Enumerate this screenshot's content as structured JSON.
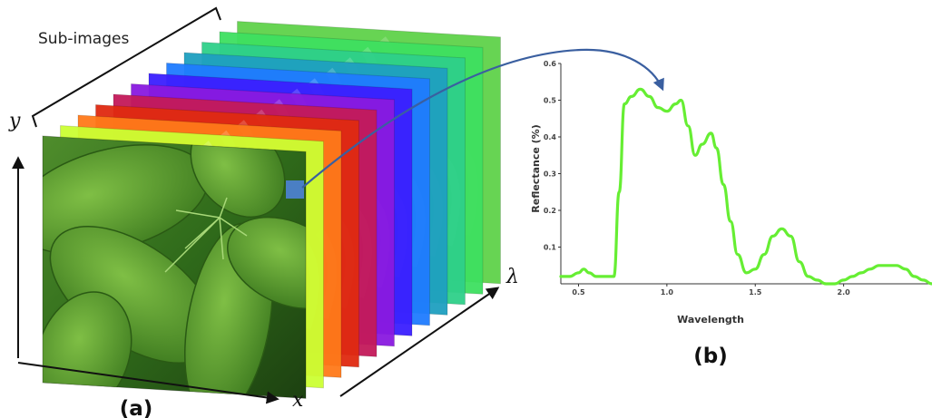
{
  "cube": {
    "sub_images_label": "Sub-images",
    "axis_x": "x",
    "axis_y": "y",
    "axis_lambda": "λ",
    "panel_label": "(a)",
    "layer_colors": [
      "#ccff33",
      "#ff7a1a",
      "#e02a10",
      "#c41a5a",
      "#8a1ae0",
      "#3b1fff",
      "#1f7cff",
      "#1fa0c0",
      "#2fd08a",
      "#3ee060",
      "#5fd24a"
    ],
    "front_image": "leaf-photo"
  },
  "spectrum": {
    "panel_label": "(b)",
    "chart_data": {
      "type": "line",
      "title": "",
      "xlabel": "Wavelength",
      "ylabel": "Reflectance (%)",
      "xlim": [
        0.4,
        2.5
      ],
      "ylim": [
        0,
        0.6
      ],
      "xticks": [
        "0.5",
        "1.0",
        "1.5",
        "2.0"
      ],
      "yticks": [
        "0.1",
        "0.2",
        "0.3",
        "0.4",
        "0.5",
        "0.6"
      ],
      "series_color": "#66ee33",
      "series": [
        {
          "name": "",
          "x": [
            0.4,
            0.45,
            0.5,
            0.53,
            0.56,
            0.6,
            0.65,
            0.7,
            0.73,
            0.76,
            0.8,
            0.85,
            0.9,
            0.95,
            1.0,
            1.05,
            1.08,
            1.12,
            1.16,
            1.2,
            1.25,
            1.28,
            1.32,
            1.36,
            1.4,
            1.45,
            1.5,
            1.55,
            1.6,
            1.65,
            1.7,
            1.75,
            1.8,
            1.85,
            1.9,
            1.95,
            2.0,
            2.05,
            2.1,
            2.15,
            2.2,
            2.25,
            2.3,
            2.35,
            2.4,
            2.45,
            2.5
          ],
          "y": [
            0.02,
            0.02,
            0.03,
            0.04,
            0.03,
            0.02,
            0.02,
            0.02,
            0.25,
            0.49,
            0.51,
            0.53,
            0.51,
            0.48,
            0.47,
            0.49,
            0.5,
            0.43,
            0.35,
            0.38,
            0.41,
            0.37,
            0.27,
            0.17,
            0.08,
            0.03,
            0.04,
            0.08,
            0.13,
            0.15,
            0.13,
            0.06,
            0.02,
            0.01,
            0.0,
            0.0,
            0.01,
            0.02,
            0.03,
            0.04,
            0.05,
            0.05,
            0.05,
            0.04,
            0.02,
            0.01,
            0.0
          ]
        }
      ]
    }
  }
}
